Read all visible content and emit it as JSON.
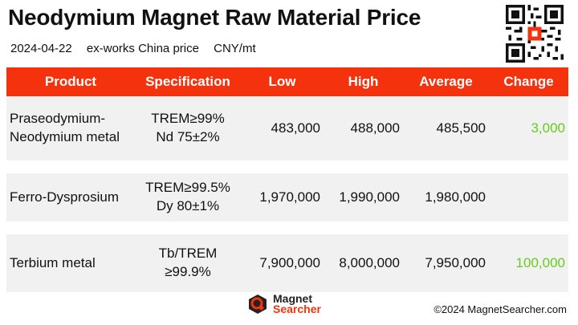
{
  "header": {
    "title": "Neodymium Magnet Raw Material Price",
    "date": "2024-04-22",
    "basis": "ex-works China price",
    "unit": "CNY/mt"
  },
  "table": {
    "columns": {
      "product": "Product",
      "specification": "Specification",
      "low": "Low",
      "high": "High",
      "average": "Average",
      "change": "Change"
    },
    "rows": [
      {
        "product_line1": "Praseodymium-",
        "product_line2": "Neodymium metal",
        "spec_line1": "TREM≥99%",
        "spec_line2": "Nd 75±2%",
        "low": "483,000",
        "high": "488,000",
        "average": "485,500",
        "change": "3,000"
      },
      {
        "product_line1": "Ferro-Dysprosium",
        "product_line2": "",
        "spec_line1": "TREM≥99.5%",
        "spec_line2": "Dy 80±1%",
        "low": "1,970,000",
        "high": "1,990,000",
        "average": "1,980,000",
        "change": ""
      },
      {
        "product_line1": "Terbium metal",
        "product_line2": "",
        "spec_line1": "Tb/TREM",
        "spec_line2": "≥99.9%",
        "low": "7,900,000",
        "high": "8,000,000",
        "average": "7,950,000",
        "change": "100,000"
      }
    ]
  },
  "footer": {
    "logo_line1": "Magnet",
    "logo_line2": "Searcher",
    "copyright": "©2024 MagnetSearcher.com"
  },
  "colors": {
    "accent": "#f4330e",
    "change_positive": "#66cc1a",
    "row_background": "#f1f1f1"
  }
}
